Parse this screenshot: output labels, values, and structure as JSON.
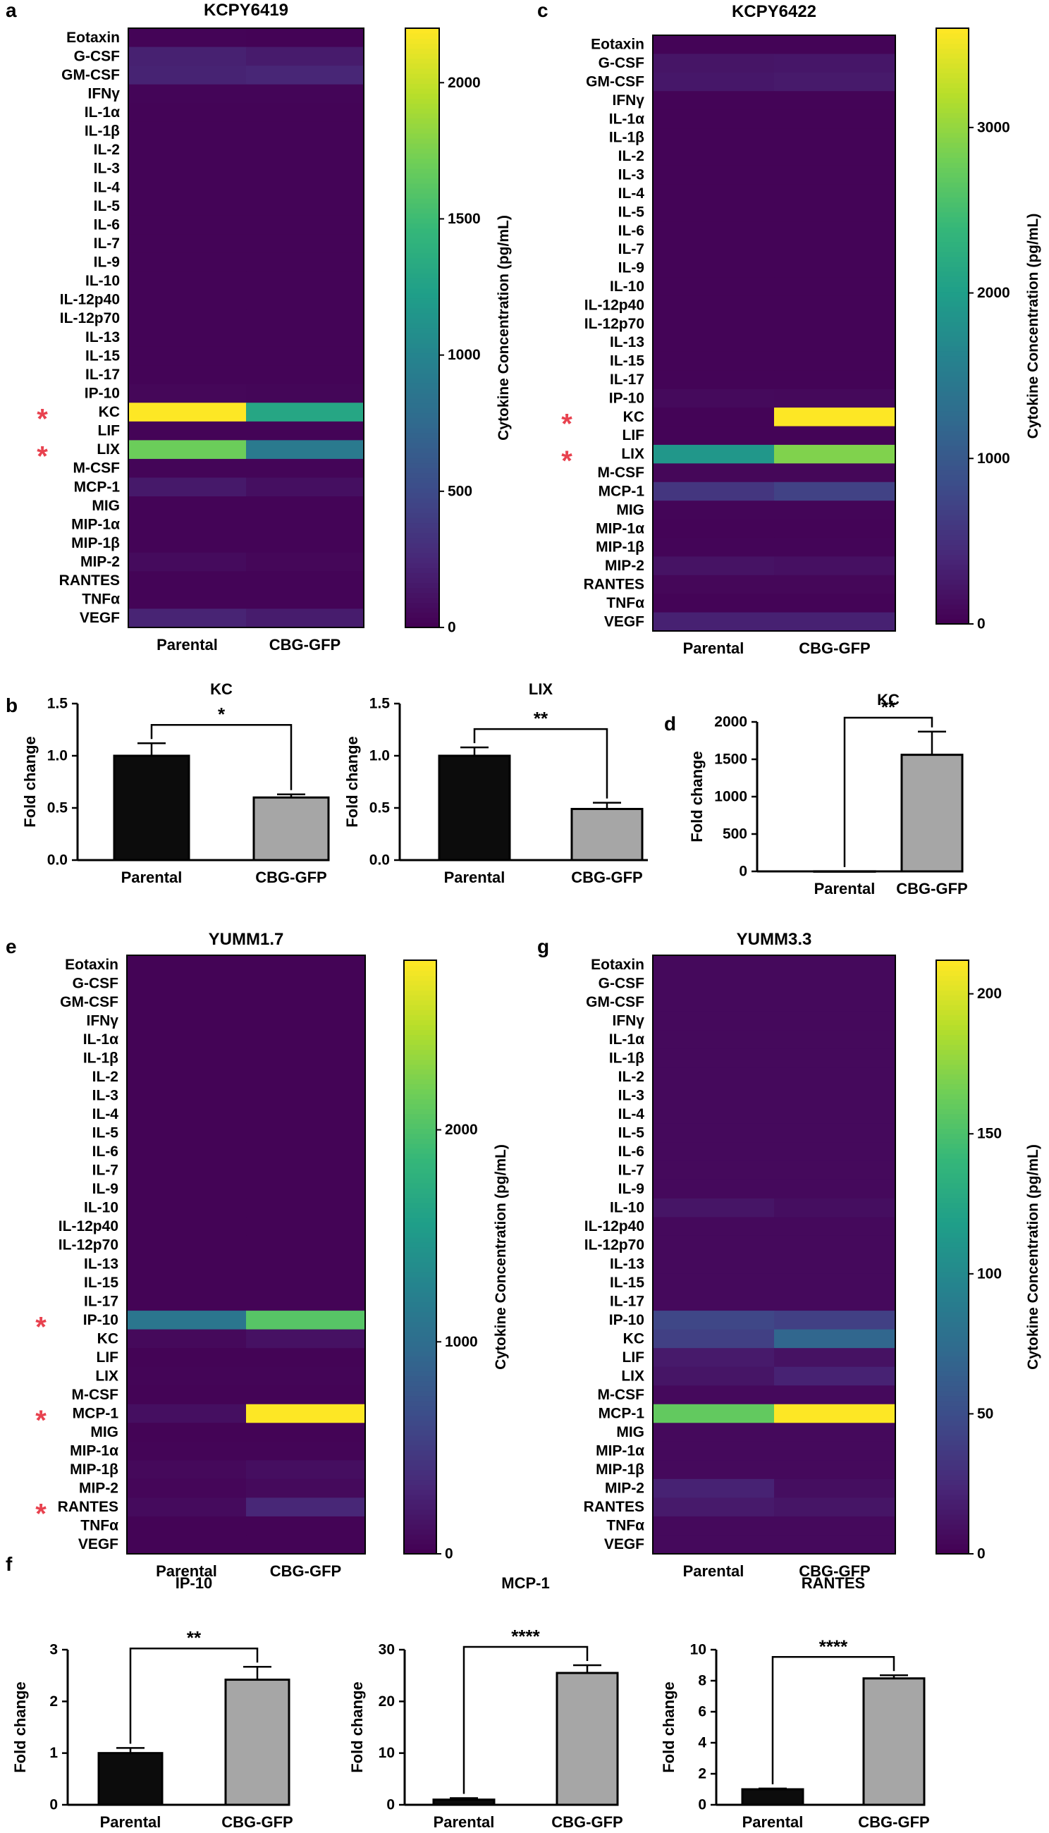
{
  "panels": {
    "a": "a",
    "b": "b",
    "c": "c",
    "d": "d",
    "e": "e",
    "f": "f",
    "g": "g"
  },
  "colorbar_label": "Cytokine Concentration (pg/mL)",
  "significance_mark": "*",
  "heatmap_conditions": [
    "Parental",
    "CBG-GFP"
  ],
  "heatmap_rows": [
    "Eotaxin",
    "G-CSF",
    "GM-CSF",
    "IFNγ",
    "IL-1α",
    "IL-1β",
    "IL-2",
    "IL-3",
    "IL-4",
    "IL-5",
    "IL-6",
    "IL-7",
    "IL-9",
    "IL-10",
    "IL-12p40",
    "IL-12p70",
    "IL-13",
    "IL-15",
    "IL-17",
    "IP-10",
    "KC",
    "LIF",
    "LIX",
    "M-CSF",
    "MCP-1",
    "MIG",
    "MIP-1α",
    "MIP-1β",
    "MIP-2",
    "RANTES",
    "TNFα",
    "VEGF"
  ],
  "colors": {
    "viridis": [
      "#440154",
      "#482878",
      "#3e4a89",
      "#31688e",
      "#26828e",
      "#1f9e89",
      "#35b779",
      "#6ece58",
      "#b5de2b",
      "#fde725"
    ],
    "bar_parental": "#0c0c0c",
    "bar_cbg": "#a6a6a6",
    "star": "#e8424f"
  },
  "chart_data": [
    {
      "panel": "a",
      "type": "heatmap",
      "title": "KCPY6419",
      "x": [
        "Parental",
        "CBG-GFP"
      ],
      "y": [
        "Eotaxin",
        "G-CSF",
        "GM-CSF",
        "IFNγ",
        "IL-1α",
        "IL-1β",
        "IL-2",
        "IL-3",
        "IL-4",
        "IL-5",
        "IL-6",
        "IL-7",
        "IL-9",
        "IL-10",
        "IL-12p40",
        "IL-12p70",
        "IL-13",
        "IL-15",
        "IL-17",
        "IP-10",
        "KC",
        "LIF",
        "LIX",
        "M-CSF",
        "MCP-1",
        "MIG",
        "MIP-1α",
        "MIP-1β",
        "MIP-2",
        "RANTES",
        "TNFα",
        "VEGF"
      ],
      "values": [
        [
          20,
          15
        ],
        [
          200,
          160
        ],
        [
          210,
          230
        ],
        [
          25,
          25
        ],
        [
          20,
          20
        ],
        [
          20,
          20
        ],
        [
          20,
          20
        ],
        [
          20,
          20
        ],
        [
          20,
          20
        ],
        [
          20,
          20
        ],
        [
          20,
          20
        ],
        [
          20,
          20
        ],
        [
          20,
          20
        ],
        [
          20,
          20
        ],
        [
          20,
          20
        ],
        [
          20,
          20
        ],
        [
          20,
          20
        ],
        [
          20,
          20
        ],
        [
          20,
          20
        ],
        [
          35,
          30
        ],
        [
          2200,
          1300
        ],
        [
          20,
          20
        ],
        [
          1700,
          900
        ],
        [
          25,
          25
        ],
        [
          150,
          90
        ],
        [
          20,
          20
        ],
        [
          20,
          20
        ],
        [
          20,
          20
        ],
        [
          60,
          35
        ],
        [
          20,
          20
        ],
        [
          20,
          20
        ],
        [
          220,
          170
        ]
      ],
      "vmin": 0,
      "vmax": 2200,
      "colorbar_ticks": [
        "0",
        "500",
        "1000",
        "1500",
        "2000"
      ],
      "starred": [
        "KC",
        "LIX"
      ]
    },
    {
      "panel": "c",
      "type": "heatmap",
      "title": "KCPY6422",
      "x": [
        "Parental",
        "CBG-GFP"
      ],
      "y": [
        "Eotaxin",
        "G-CSF",
        "GM-CSF",
        "IFNγ",
        "IL-1α",
        "IL-1β",
        "IL-2",
        "IL-3",
        "IL-4",
        "IL-5",
        "IL-6",
        "IL-7",
        "IL-9",
        "IL-10",
        "IL-12p40",
        "IL-12p70",
        "IL-13",
        "IL-15",
        "IL-17",
        "IP-10",
        "KC",
        "LIF",
        "LIX",
        "M-CSF",
        "MCP-1",
        "MIG",
        "MIP-1α",
        "MIP-1β",
        "MIP-2",
        "RANTES",
        "TNFα",
        "VEGF"
      ],
      "values": [
        [
          30,
          30
        ],
        [
          200,
          220
        ],
        [
          230,
          260
        ],
        [
          30,
          30
        ],
        [
          30,
          30
        ],
        [
          30,
          30
        ],
        [
          30,
          30
        ],
        [
          30,
          30
        ],
        [
          30,
          30
        ],
        [
          30,
          30
        ],
        [
          30,
          30
        ],
        [
          30,
          30
        ],
        [
          30,
          30
        ],
        [
          30,
          30
        ],
        [
          30,
          30
        ],
        [
          30,
          30
        ],
        [
          30,
          30
        ],
        [
          30,
          30
        ],
        [
          30,
          30
        ],
        [
          90,
          80
        ],
        [
          30,
          3600
        ],
        [
          30,
          30
        ],
        [
          1900,
          2900
        ],
        [
          60,
          60
        ],
        [
          560,
          700
        ],
        [
          40,
          40
        ],
        [
          30,
          30
        ],
        [
          40,
          40
        ],
        [
          180,
          150
        ],
        [
          60,
          60
        ],
        [
          30,
          30
        ],
        [
          330,
          330
        ]
      ],
      "vmin": 0,
      "vmax": 3600,
      "colorbar_ticks": [
        "0",
        "1000",
        "2000",
        "3000"
      ],
      "starred": [
        "KC",
        "LIX"
      ]
    },
    {
      "panel": "e",
      "type": "heatmap",
      "title": "YUMM1.7",
      "x": [
        "Parental",
        "CBG-GFP"
      ],
      "y": [
        "Eotaxin",
        "G-CSF",
        "GM-CSF",
        "IFNγ",
        "IL-1α",
        "IL-1β",
        "IL-2",
        "IL-3",
        "IL-4",
        "IL-5",
        "IL-6",
        "IL-7",
        "IL-9",
        "IL-10",
        "IL-12p40",
        "IL-12p70",
        "IL-13",
        "IL-15",
        "IL-17",
        "IP-10",
        "KC",
        "LIF",
        "LIX",
        "M-CSF",
        "MCP-1",
        "MIG",
        "MIP-1α",
        "MIP-1β",
        "MIP-2",
        "RANTES",
        "TNFα",
        "VEGF"
      ],
      "values": [
        [
          20,
          20
        ],
        [
          20,
          20
        ],
        [
          20,
          20
        ],
        [
          20,
          20
        ],
        [
          20,
          20
        ],
        [
          20,
          20
        ],
        [
          20,
          20
        ],
        [
          20,
          20
        ],
        [
          20,
          20
        ],
        [
          20,
          20
        ],
        [
          20,
          20
        ],
        [
          20,
          20
        ],
        [
          20,
          20
        ],
        [
          20,
          20
        ],
        [
          20,
          20
        ],
        [
          20,
          20
        ],
        [
          20,
          20
        ],
        [
          20,
          20
        ],
        [
          20,
          20
        ],
        [
          1100,
          2050
        ],
        [
          60,
          130
        ],
        [
          20,
          20
        ],
        [
          30,
          30
        ],
        [
          20,
          20
        ],
        [
          110,
          2800
        ],
        [
          20,
          20
        ],
        [
          30,
          30
        ],
        [
          60,
          100
        ],
        [
          40,
          70
        ],
        [
          80,
          300
        ],
        [
          20,
          20
        ],
        [
          20,
          20
        ]
      ],
      "vmin": 0,
      "vmax": 2800,
      "colorbar_ticks": [
        "0",
        "1000",
        "2000"
      ],
      "starred": [
        "IP-10",
        "MCP-1",
        "RANTES"
      ]
    },
    {
      "panel": "g",
      "type": "heatmap",
      "title": "YUMM3.3",
      "x": [
        "Parental",
        "CBG-GFP"
      ],
      "y": [
        "Eotaxin",
        "G-CSF",
        "GM-CSF",
        "IFNγ",
        "IL-1α",
        "IL-1β",
        "IL-2",
        "IL-3",
        "IL-4",
        "IL-5",
        "IL-6",
        "IL-7",
        "IL-9",
        "IL-10",
        "IL-12p40",
        "IL-12p70",
        "IL-13",
        "IL-15",
        "IL-17",
        "IP-10",
        "KC",
        "LIF",
        "LIX",
        "M-CSF",
        "MCP-1",
        "MIG",
        "MIP-1α",
        "MIP-1β",
        "MIP-2",
        "RANTES",
        "TNFα",
        "VEGF"
      ],
      "values": [
        [
          5,
          5
        ],
        [
          5,
          5
        ],
        [
          5,
          5
        ],
        [
          5,
          5
        ],
        [
          5,
          5
        ],
        [
          5,
          5
        ],
        [
          5,
          5
        ],
        [
          5,
          5
        ],
        [
          5,
          5
        ],
        [
          5,
          5
        ],
        [
          5,
          5
        ],
        [
          5,
          5
        ],
        [
          5,
          5
        ],
        [
          12,
          8
        ],
        [
          5,
          5
        ],
        [
          5,
          5
        ],
        [
          5,
          5
        ],
        [
          5,
          5
        ],
        [
          5,
          5
        ],
        [
          45,
          40
        ],
        [
          40,
          70
        ],
        [
          15,
          10
        ],
        [
          12,
          20
        ],
        [
          5,
          5
        ],
        [
          160,
          212
        ],
        [
          5,
          5
        ],
        [
          5,
          5
        ],
        [
          5,
          5
        ],
        [
          20,
          8
        ],
        [
          15,
          12
        ],
        [
          5,
          5
        ],
        [
          5,
          5
        ]
      ],
      "vmin": 0,
      "vmax": 212,
      "colorbar_ticks": [
        "0",
        "50",
        "100",
        "150",
        "200"
      ],
      "starred": []
    },
    {
      "panel": "b",
      "type": "bar",
      "title": "KC",
      "categories": [
        "Parental",
        "CBG-GFP"
      ],
      "values": [
        1.0,
        0.6
      ],
      "errors": [
        0.12,
        0.03
      ],
      "ylabel": "Fold change",
      "ylim": [
        0,
        1.5
      ],
      "yticks": [
        "0.0",
        "0.5",
        "1.0",
        "1.5"
      ],
      "significance": "*"
    },
    {
      "panel": "b",
      "type": "bar",
      "title": "LIX",
      "categories": [
        "Parental",
        "CBG-GFP"
      ],
      "values": [
        1.0,
        0.49
      ],
      "errors": [
        0.08,
        0.06
      ],
      "ylabel": "Fold change",
      "ylim": [
        0,
        1.5
      ],
      "yticks": [
        "0.0",
        "0.5",
        "1.0",
        "1.5"
      ],
      "significance": "**"
    },
    {
      "panel": "d",
      "type": "bar",
      "title": "KC",
      "categories": [
        "Parental",
        "CBG-GFP"
      ],
      "values": [
        1,
        1560
      ],
      "errors": [
        0,
        310
      ],
      "ylabel": "Fold change",
      "ylim": [
        0,
        2000
      ],
      "yticks": [
        "0",
        "500",
        "1000",
        "1500",
        "2000"
      ],
      "significance": "**"
    },
    {
      "panel": "f",
      "type": "bar",
      "title": "IP-10",
      "categories": [
        "Parental",
        "CBG-GFP"
      ],
      "values": [
        1.0,
        2.42
      ],
      "errors": [
        0.1,
        0.25
      ],
      "ylabel": "Fold change",
      "ylim": [
        0,
        3
      ],
      "yticks": [
        "0",
        "1",
        "2",
        "3"
      ],
      "significance": "**"
    },
    {
      "panel": "f",
      "type": "bar",
      "title": "MCP-1",
      "categories": [
        "Parental",
        "CBG-GFP"
      ],
      "values": [
        1.0,
        25.5
      ],
      "errors": [
        0.3,
        1.5
      ],
      "ylabel": "Fold change",
      "ylim": [
        0,
        30
      ],
      "yticks": [
        "0",
        "10",
        "20",
        "30"
      ],
      "significance": "****"
    },
    {
      "panel": "f",
      "type": "bar",
      "title": "RANTES",
      "categories": [
        "Parental",
        "CBG-GFP"
      ],
      "values": [
        1.0,
        8.15
      ],
      "errors": [
        0.05,
        0.2
      ],
      "ylabel": "Fold change",
      "ylim": [
        0,
        10
      ],
      "yticks": [
        "0",
        "2",
        "4",
        "6",
        "8",
        "10"
      ],
      "significance": "****"
    }
  ]
}
